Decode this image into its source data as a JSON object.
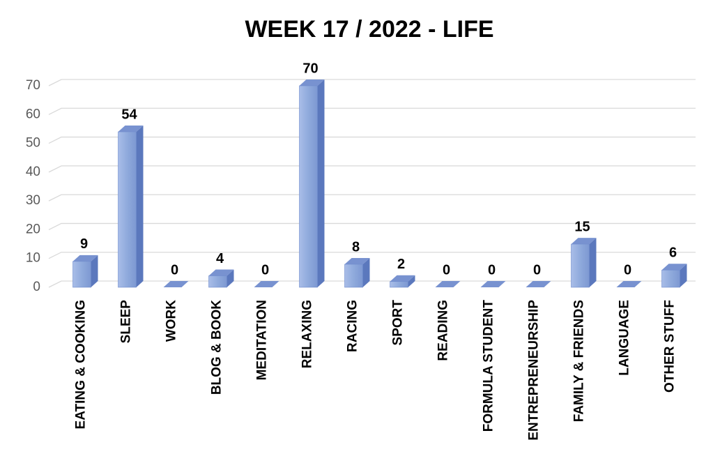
{
  "chart_data": {
    "type": "bar",
    "title": "WEEK 17 / 2022 - LIFE",
    "categories": [
      "EATING & COOKING",
      "SLEEP",
      "WORK",
      "BLOG & BOOK",
      "MEDITATION",
      "RELAXING",
      "RACING",
      "SPORT",
      "READING",
      "FORMULA STUDENT",
      "ENTREPRENEURSHIP",
      "FAMILY & FRIENDS",
      "LANGUAGE",
      "OTHER STUFF"
    ],
    "values": [
      9,
      54,
      0,
      4,
      0,
      70,
      8,
      2,
      0,
      0,
      0,
      15,
      0,
      6
    ],
    "color": "#8faadc",
    "ylim": [
      0,
      70
    ],
    "yticks": [
      0,
      10,
      20,
      30,
      40,
      50,
      60,
      70
    ],
    "grid": true
  }
}
